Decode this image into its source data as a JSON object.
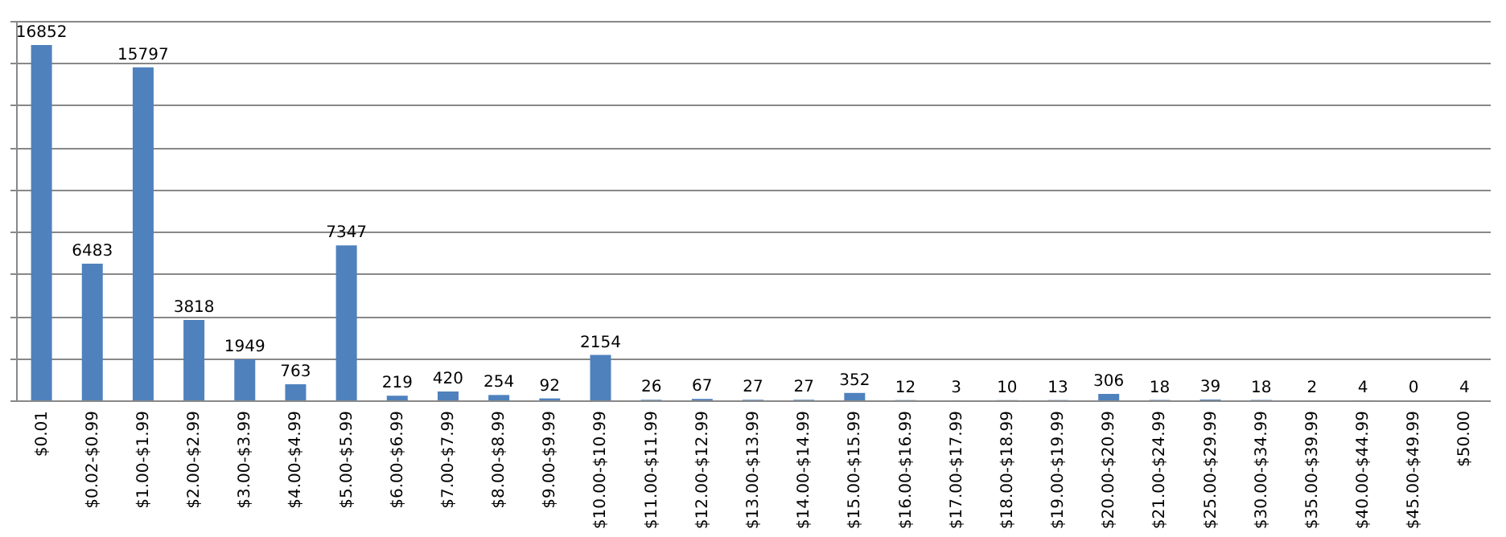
{
  "chart_data": {
    "type": "bar",
    "categories": [
      "$0.01",
      "$0.02-$0.99",
      "$1.00-$1.99",
      "$2.00-$2.99",
      "$3.00-$3.99",
      "$4.00-$4.99",
      "$5.00-$5.99",
      "$6.00-$6.99",
      "$7.00-$7.99",
      "$8.00-$8.99",
      "$9.00-$9.99",
      "$10.00-$10.99",
      "$11.00-$11.99",
      "$12.00-$12.99",
      "$13.00-$13.99",
      "$14.00-$14.99",
      "$15.00-$15.99",
      "$16.00-$16.99",
      "$17.00-$17.99",
      "$18.00-$18.99",
      "$19.00-$19.99",
      "$20.00-$20.99",
      "$21.00-$24.99",
      "$25.00-$29.99",
      "$30.00-$34.99",
      "$35.00-$39.99",
      "$40.00-$44.99",
      "$45.00-$49.99",
      "$50.00"
    ],
    "values": [
      16852,
      6483,
      15797,
      3818,
      1949,
      763,
      7347,
      219,
      420,
      254,
      92,
      2154,
      26,
      67,
      27,
      27,
      352,
      12,
      3,
      10,
      13,
      306,
      18,
      39,
      18,
      2,
      4,
      0,
      4
    ],
    "color": "#4f81bd",
    "ylim": [
      0,
      18000
    ],
    "yticks": [
      {
        "value": 0,
        "label": null
      },
      {
        "value": 2000,
        "label": null
      },
      {
        "value": 4000,
        "label": null
      },
      {
        "value": 6000,
        "label": null
      },
      {
        "value": 8000,
        "label": null
      },
      {
        "value": 10000,
        "label": null
      },
      {
        "value": 12000,
        "label": null
      },
      {
        "value": 14000,
        "label": null
      },
      {
        "value": 16000,
        "label": null
      },
      {
        "value": 18000,
        "label": null
      }
    ],
    "tick_labels": "x",
    "grid": "y",
    "data_labels": true
  }
}
